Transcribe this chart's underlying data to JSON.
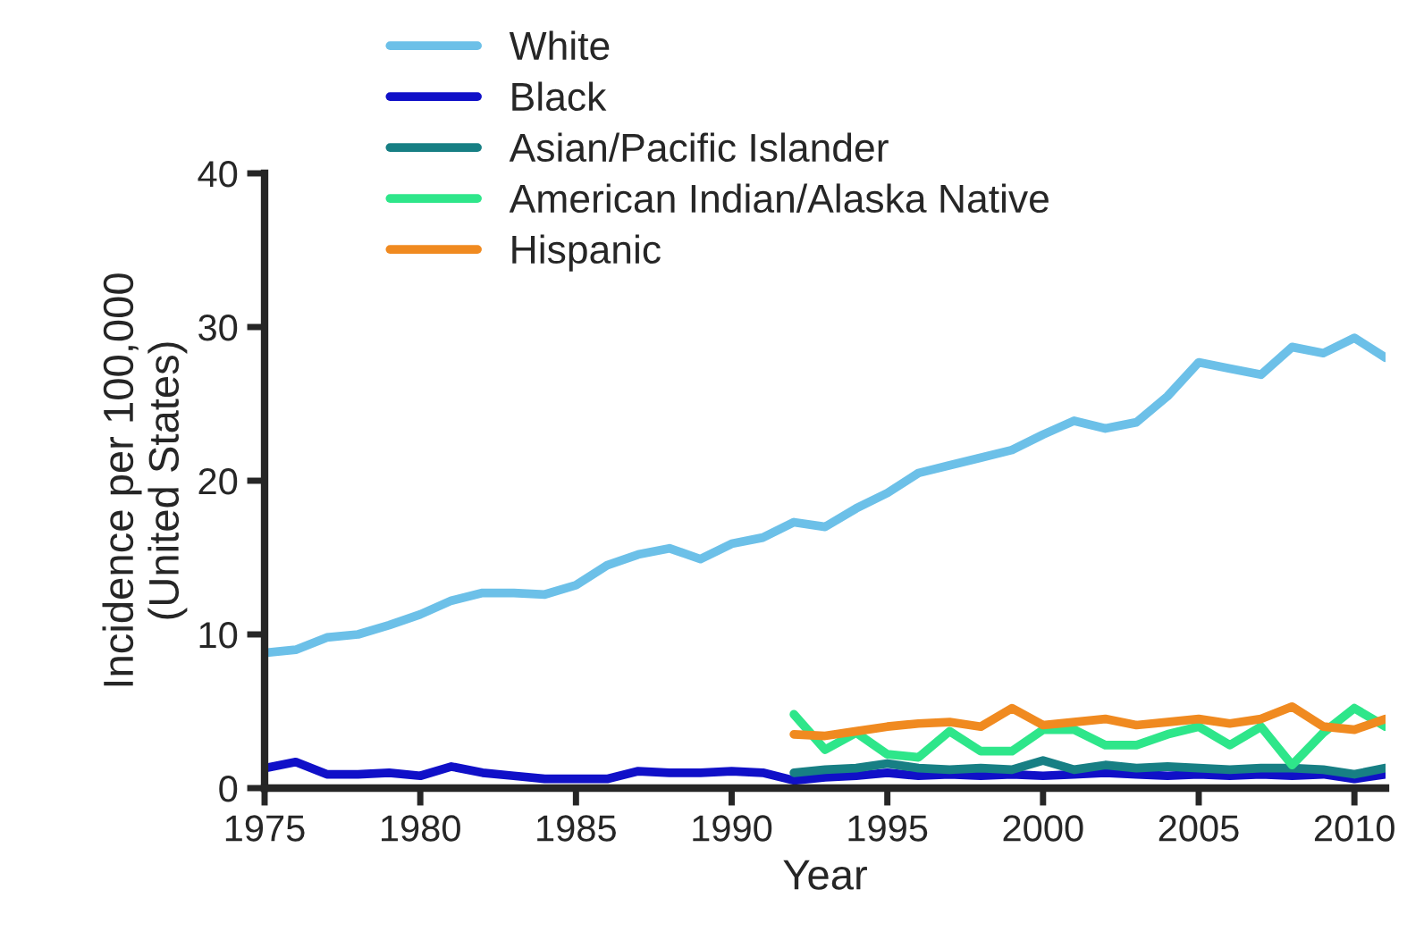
{
  "chart_data": {
    "type": "line",
    "xlabel": "Year",
    "ylabel": "Incidence per 100,000\n(United States)",
    "xlim": [
      1975,
      2011
    ],
    "ylim": [
      0,
      40
    ],
    "xticks": [
      1975,
      1980,
      1985,
      1990,
      1995,
      2000,
      2005,
      2010
    ],
    "yticks": [
      0,
      10,
      20,
      30,
      40
    ],
    "grid": false,
    "legend": "top left",
    "marker": "none",
    "line_style": "solid",
    "series": [
      {
        "name": "White",
        "color": "#6cc0e8",
        "x": [
          1975,
          1976,
          1977,
          1978,
          1979,
          1980,
          1981,
          1982,
          1983,
          1984,
          1985,
          1986,
          1987,
          1988,
          1989,
          1990,
          1991,
          1992,
          1993,
          1994,
          1995,
          1996,
          1997,
          1998,
          1999,
          2000,
          2001,
          2002,
          2003,
          2004,
          2005,
          2006,
          2007,
          2008,
          2009,
          2010,
          2011
        ],
        "values": [
          8.8,
          9.0,
          9.8,
          10.0,
          10.6,
          11.3,
          12.2,
          12.7,
          12.7,
          12.6,
          13.2,
          14.5,
          15.2,
          15.6,
          14.9,
          15.9,
          16.3,
          17.3,
          17.0,
          18.2,
          19.2,
          20.5,
          21.0,
          21.5,
          22.0,
          23.0,
          23.9,
          23.4,
          23.8,
          25.5,
          27.7,
          27.3,
          26.9,
          28.7,
          28.3,
          29.3,
          28.0
        ]
      },
      {
        "name": "Black",
        "color": "#1010c8",
        "x": [
          1975,
          1976,
          1977,
          1978,
          1979,
          1980,
          1981,
          1982,
          1983,
          1984,
          1985,
          1986,
          1987,
          1988,
          1989,
          1990,
          1991,
          1992,
          1993,
          1994,
          1995,
          1996,
          1997,
          1998,
          1999,
          2000,
          2001,
          2002,
          2003,
          2004,
          2005,
          2006,
          2007,
          2008,
          2009,
          2010,
          2011
        ],
        "values": [
          1.3,
          1.7,
          0.9,
          0.9,
          1.0,
          0.8,
          1.4,
          1.0,
          0.8,
          0.6,
          0.6,
          0.6,
          1.1,
          1.0,
          1.0,
          1.1,
          1.0,
          0.5,
          0.7,
          0.8,
          1.0,
          0.8,
          0.9,
          0.8,
          0.9,
          0.8,
          0.9,
          1.0,
          0.9,
          0.8,
          0.9,
          0.8,
          0.9,
          0.8,
          0.9,
          0.6,
          0.9
        ]
      },
      {
        "name": "Asian/Pacific Islander",
        "color": "#177f84",
        "x": [
          1992,
          1993,
          1994,
          1995,
          1996,
          1997,
          1998,
          1999,
          2000,
          2001,
          2002,
          2003,
          2004,
          2005,
          2006,
          2007,
          2008,
          2009,
          2010,
          2011
        ],
        "values": [
          1.0,
          1.2,
          1.3,
          1.6,
          1.3,
          1.2,
          1.3,
          1.2,
          1.8,
          1.2,
          1.5,
          1.3,
          1.4,
          1.3,
          1.2,
          1.3,
          1.3,
          1.2,
          0.9,
          1.3
        ]
      },
      {
        "name": "American Indian/Alaska Native",
        "color": "#2ee68a",
        "x": [
          1992,
          1993,
          1994,
          1995,
          1996,
          1997,
          1998,
          1999,
          2000,
          2001,
          2002,
          2003,
          2004,
          2005,
          2006,
          2007,
          2008,
          2009,
          2010,
          2011
        ],
        "values": [
          4.8,
          2.5,
          3.6,
          2.2,
          2.0,
          3.7,
          2.4,
          2.4,
          3.8,
          3.8,
          2.8,
          2.8,
          3.5,
          4.0,
          2.8,
          4.0,
          1.5,
          3.6,
          5.2,
          4.0
        ]
      },
      {
        "name": "Hispanic",
        "color": "#f08a20",
        "x": [
          1992,
          1993,
          1994,
          1995,
          1996,
          1997,
          1998,
          1999,
          2000,
          2001,
          2002,
          2003,
          2004,
          2005,
          2006,
          2007,
          2008,
          2009,
          2010,
          2011
        ],
        "values": [
          3.5,
          3.4,
          3.7,
          4.0,
          4.2,
          4.3,
          4.0,
          5.2,
          4.1,
          4.3,
          4.5,
          4.1,
          4.3,
          4.5,
          4.2,
          4.5,
          5.3,
          4.0,
          3.8,
          4.5
        ]
      }
    ]
  }
}
